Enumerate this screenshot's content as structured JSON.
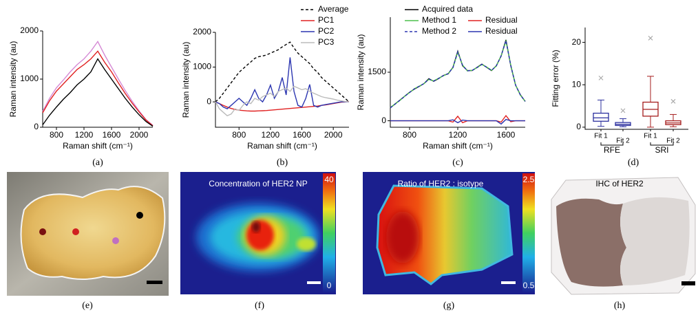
{
  "chart_data": [
    {
      "type": "line",
      "panel_label": "(a)",
      "xlabel": "Raman shift (cm⁻¹)",
      "ylabel": "Raman intensity (au)",
      "x": [
        600,
        700,
        800,
        900,
        1000,
        1100,
        1200,
        1300,
        1400,
        1500,
        1600,
        1700,
        1800,
        1900,
        2000,
        2100,
        2200
      ],
      "xlim": [
        600,
        2200
      ],
      "xticks": [
        800,
        1200,
        1600,
        2000
      ],
      "ylim": [
        0,
        2000
      ],
      "yticks": [
        0,
        1000,
        2000
      ],
      "legend": false,
      "series": [
        {
          "color": "#d58ad5",
          "values": [
            330,
            600,
            820,
            980,
            1150,
            1300,
            1420,
            1580,
            1780,
            1500,
            1250,
            1000,
            760,
            540,
            340,
            160,
            40
          ]
        },
        {
          "color": "#e02020",
          "values": [
            300,
            550,
            750,
            900,
            1050,
            1200,
            1300,
            1420,
            1580,
            1350,
            1150,
            920,
            700,
            500,
            320,
            150,
            30
          ]
        },
        {
          "color": "#000000",
          "values": [
            50,
            250,
            420,
            580,
            720,
            880,
            1000,
            1150,
            1420,
            1200,
            1000,
            800,
            600,
            420,
            260,
            120,
            20
          ]
        }
      ]
    },
    {
      "type": "line",
      "panel_label": "(b)",
      "xlabel": "Raman shift (cm⁻¹)",
      "ylabel": "Raman intensity (au)",
      "x": [
        500,
        550,
        600,
        650,
        700,
        750,
        800,
        850,
        900,
        950,
        1000,
        1050,
        1100,
        1150,
        1200,
        1250,
        1300,
        1350,
        1400,
        1450,
        1500,
        1550,
        1600,
        1650,
        1700,
        1750,
        1800,
        1850,
        1900,
        1950,
        2000,
        2050,
        2100,
        2150,
        2200
      ],
      "xlim": [
        500,
        2200
      ],
      "xticks": [
        800,
        1200,
        1600,
        2000
      ],
      "ylim": [
        -730,
        2000
      ],
      "yticks": [
        0,
        1000,
        2000
      ],
      "legend": true,
      "series": [
        {
          "name": "Average",
          "color": "#000000",
          "dash": true,
          "values": [
            0,
            100,
            250,
            400,
            550,
            700,
            850,
            950,
            1050,
            1150,
            1250,
            1300,
            1320,
            1350,
            1400,
            1450,
            1500,
            1580,
            1650,
            1720,
            1550,
            1400,
            1300,
            1200,
            1100,
            950,
            850,
            700,
            600,
            500,
            400,
            300,
            200,
            100,
            0
          ]
        },
        {
          "name": "PC1",
          "color": "#e02020",
          "values": [
            0,
            -50,
            -100,
            -150,
            -190,
            -220,
            -240,
            -250,
            -260,
            -265,
            -265,
            -260,
            -255,
            -250,
            -240,
            -230,
            -220,
            -210,
            -200,
            -190,
            -180,
            -170,
            -160,
            -150,
            -140,
            -130,
            -120,
            -100,
            -90,
            -70,
            -50,
            -30,
            -10,
            0,
            10
          ]
        },
        {
          "name": "PC2",
          "color": "#2b35b0",
          "values": [
            0,
            -50,
            -150,
            -200,
            -100,
            0,
            100,
            0,
            -100,
            100,
            350,
            100,
            0,
            200,
            480,
            100,
            300,
            700,
            200,
            1280,
            300,
            -100,
            -150,
            100,
            500,
            -100,
            -150,
            -100,
            -80,
            -60,
            -40,
            -20,
            0,
            0,
            0
          ]
        },
        {
          "name": "PC3",
          "color": "#bbbbbb",
          "values": [
            0,
            -200,
            -300,
            -400,
            -350,
            -200,
            -250,
            -100,
            0,
            -50,
            100,
            50,
            150,
            200,
            250,
            150,
            300,
            350,
            400,
            300,
            450,
            400,
            350,
            380,
            300,
            250,
            200,
            150,
            120,
            100,
            80,
            50,
            30,
            10,
            0
          ]
        }
      ]
    },
    {
      "type": "line",
      "panel_label": "(c)",
      "xlabel": "Raman shift (cm⁻¹)",
      "ylabel": "Raman intensity (au)",
      "x": [
        640,
        680,
        720,
        760,
        800,
        840,
        880,
        920,
        960,
        1000,
        1040,
        1080,
        1120,
        1160,
        1200,
        1240,
        1280,
        1320,
        1360,
        1400,
        1440,
        1480,
        1520,
        1560,
        1600,
        1640,
        1680,
        1720,
        1760
      ],
      "xlim": [
        640,
        1760
      ],
      "xticks": [
        800,
        1200,
        1600
      ],
      "ylim": [
        -200,
        3200
      ],
      "yticks": [
        0,
        1500
      ],
      "legend": true,
      "series": [
        {
          "name": "Acquired data",
          "color": "#000000",
          "values": [
            400,
            520,
            640,
            760,
            880,
            980,
            1060,
            1150,
            1300,
            1220,
            1300,
            1400,
            1450,
            1650,
            2150,
            1700,
            1550,
            1550,
            1650,
            1750,
            1650,
            1550,
            1700,
            2000,
            2500,
            1700,
            1100,
            800,
            600
          ]
        },
        {
          "name": "Method 1",
          "color": "#4cc04c",
          "values": [
            410,
            520,
            630,
            760,
            870,
            990,
            1070,
            1150,
            1280,
            1230,
            1310,
            1390,
            1460,
            1640,
            2120,
            1720,
            1540,
            1560,
            1640,
            1740,
            1660,
            1560,
            1690,
            2010,
            2460,
            1720,
            1100,
            790,
            600
          ]
        },
        {
          "name": "Method 2",
          "color": "#2b35b0",
          "dash": true,
          "values": [
            400,
            515,
            635,
            755,
            875,
            985,
            1065,
            1150,
            1290,
            1225,
            1305,
            1395,
            1455,
            1640,
            2130,
            1710,
            1545,
            1555,
            1645,
            1745,
            1655,
            1555,
            1695,
            2005,
            2480,
            1710,
            1100,
            795,
            600
          ]
        },
        {
          "name": "Residual",
          "color": "#e02020",
          "values": [
            0,
            0,
            0,
            0,
            0,
            0,
            0,
            0,
            0,
            0,
            0,
            0,
            0,
            -40,
            140,
            -60,
            0,
            0,
            0,
            0,
            0,
            0,
            0,
            -40,
            160,
            -30,
            0,
            0,
            0
          ]
        },
        {
          "name": "Residual",
          "color": "#2b35b0",
          "values": [
            0,
            0,
            0,
            0,
            0,
            0,
            0,
            0,
            0,
            0,
            0,
            0,
            0,
            30,
            -60,
            20,
            0,
            0,
            0,
            0,
            0,
            0,
            0,
            -100,
            40,
            0,
            0,
            0,
            0
          ]
        }
      ]
    },
    {
      "type": "box",
      "panel_label": "(d)",
      "ylabel": "Fitting error (%)",
      "ylim": [
        -0.5,
        23.5
      ],
      "yticks": [
        0,
        10,
        20
      ],
      "outlier_color": "#aaaaaa",
      "groups": [
        {
          "name": "RFE",
          "color": "#2b2f9e",
          "boxes": [
            {
              "label": "Fit 1",
              "min": 0.2,
              "q1": 1.4,
              "median": 2.2,
              "q3": 3.3,
              "max": 6.4,
              "outliers": [
                11.6
              ]
            },
            {
              "label": "Fit 2",
              "min": 0.1,
              "q1": 0.4,
              "median": 0.7,
              "q3": 1.1,
              "max": 2,
              "outliers": [
                3.9
              ]
            }
          ]
        },
        {
          "name": "SRI",
          "color": "#a51c1c",
          "boxes": [
            {
              "label": "Fit 1",
              "min": 0,
              "q1": 2.6,
              "median": 4.2,
              "q3": 5.9,
              "max": 12,
              "outliers": [
                21
              ]
            },
            {
              "label": "Fit 2",
              "min": 0.1,
              "q1": 0.6,
              "median": 1,
              "q3": 1.5,
              "max": 3,
              "outliers": [
                6.1
              ]
            }
          ]
        }
      ]
    }
  ],
  "images": [
    {
      "panel_label": "(e)"
    },
    {
      "panel_label": "(f)",
      "title": "Concentration of HER2 NP",
      "colorbar_ticks": [
        0,
        40
      ]
    },
    {
      "panel_label": "(g)",
      "title": "Ratio of HER2 : isotype",
      "colorbar_ticks": [
        0.5,
        2.5
      ]
    },
    {
      "panel_label": "(h)",
      "title": "IHC of HER2"
    }
  ]
}
